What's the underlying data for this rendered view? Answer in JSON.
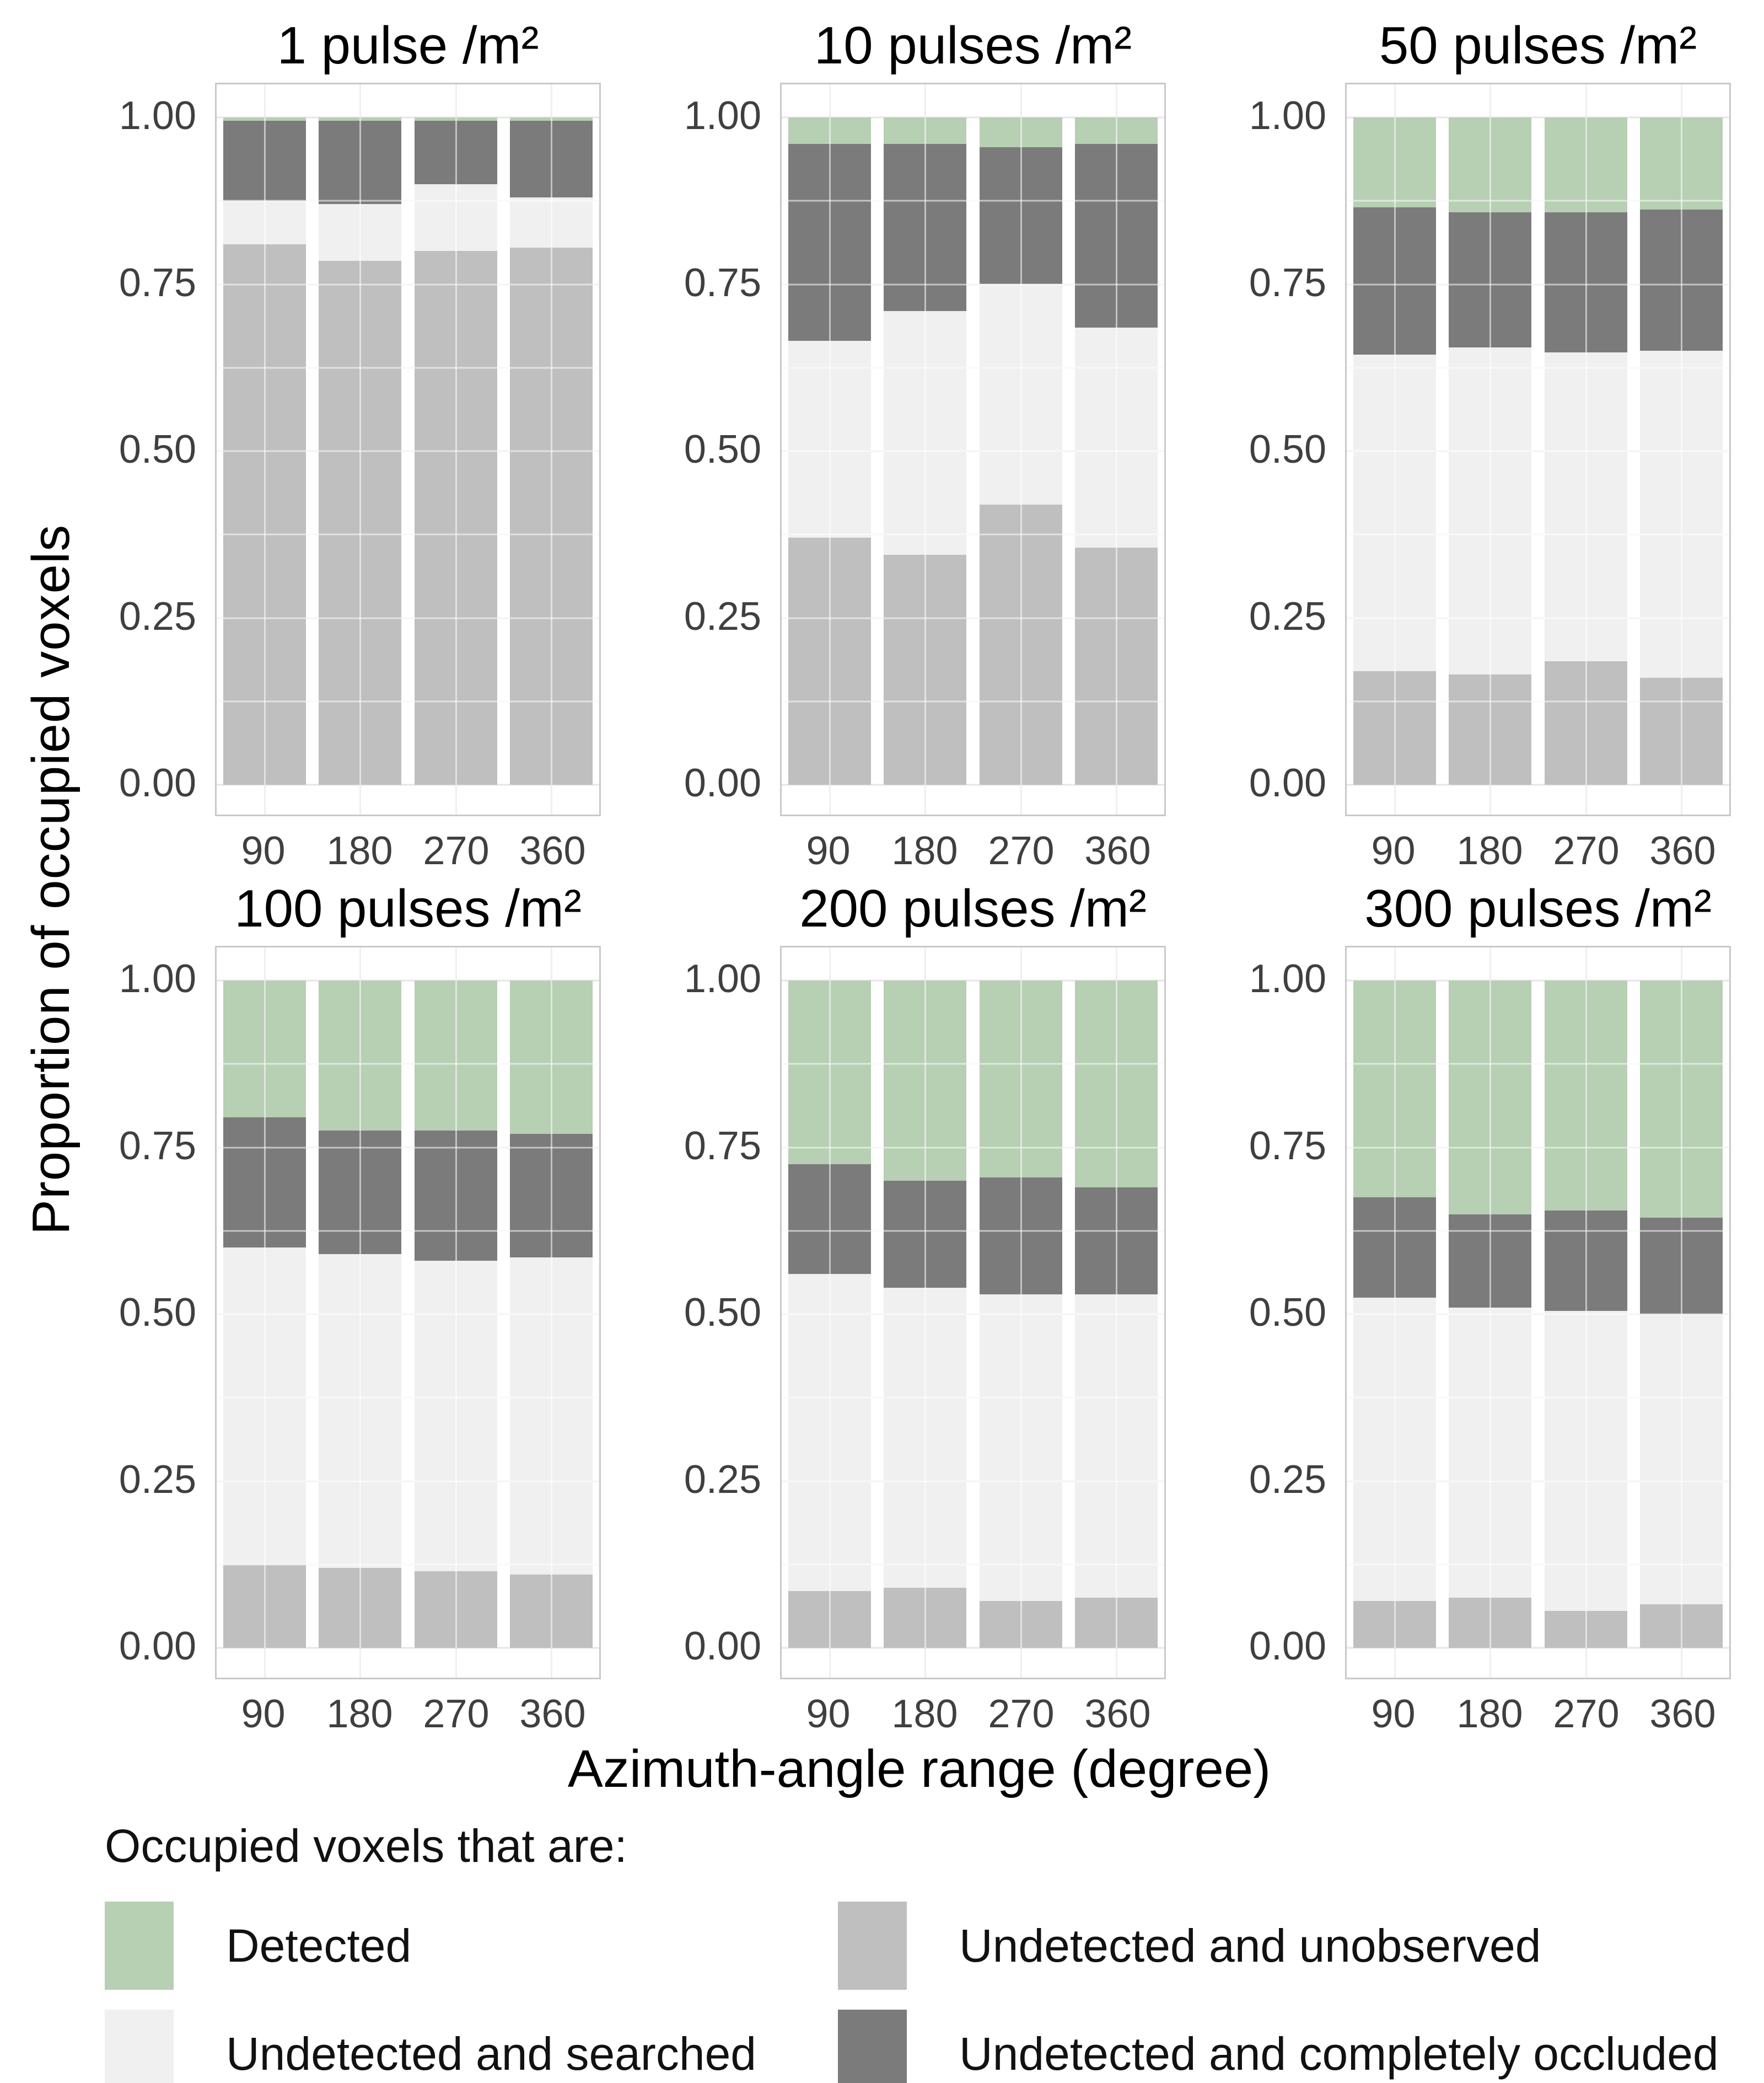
{
  "figure": {
    "x_axis_title": "Azimuth-angle range (degree)",
    "y_axis_title": "Proportion of occupied voxels",
    "legend": {
      "title": "Occupied voxels that are:",
      "items": [
        {
          "label": "Detected",
          "color": "#b7cfb3"
        },
        {
          "label": "Undetected and unobserved",
          "color": "#bfbfbf"
        },
        {
          "label": "Undetected and searched",
          "color": "#f0f0f0"
        },
        {
          "label": "Undetected and completely occluded",
          "color": "#7b7b7b"
        }
      ]
    }
  },
  "chart_data": {
    "type": "bar",
    "stacked": true,
    "grid": true,
    "legend_position": "bottom",
    "categories": [
      "90",
      "180",
      "270",
      "360"
    ],
    "xlabel": "Azimuth-angle range (degree)",
    "ylabel": "Proportion of occupied voxels",
    "ylim": [
      0,
      1
    ],
    "y_ticks": [
      "1.00",
      "0.75",
      "0.50",
      "0.25",
      "0.00"
    ],
    "series": [
      {
        "key": "unobserved",
        "name": "Undetected and unobserved",
        "color": "#bfbfbf"
      },
      {
        "key": "searched",
        "name": "Undetected and searched",
        "color": "#f0f0f0"
      },
      {
        "key": "occluded",
        "name": "Undetected and completely occluded",
        "color": "#7b7b7b"
      },
      {
        "key": "detected",
        "name": "Detected",
        "color": "#b7cfb3"
      }
    ],
    "facets": [
      {
        "title": "1 pulse /m²",
        "values": {
          "unobserved": [
            0.81,
            0.785,
            0.8,
            0.805
          ],
          "searched": [
            0.065,
            0.085,
            0.1,
            0.075
          ],
          "occluded": [
            0.12,
            0.125,
            0.095,
            0.115
          ],
          "detected": [
            0.005,
            0.005,
            0.005,
            0.005
          ]
        }
      },
      {
        "title": "10 pulses /m²",
        "values": {
          "unobserved": [
            0.37,
            0.345,
            0.42,
            0.355
          ],
          "searched": [
            0.295,
            0.365,
            0.33,
            0.33
          ],
          "occluded": [
            0.295,
            0.25,
            0.205,
            0.275
          ],
          "detected": [
            0.04,
            0.04,
            0.045,
            0.04
          ]
        }
      },
      {
        "title": "50 pulses /m²",
        "values": {
          "unobserved": [
            0.17,
            0.165,
            0.185,
            0.16
          ],
          "searched": [
            0.475,
            0.49,
            0.463,
            0.49
          ],
          "occluded": [
            0.22,
            0.203,
            0.21,
            0.212
          ],
          "detected": [
            0.135,
            0.142,
            0.142,
            0.138
          ]
        }
      },
      {
        "title": "100 pulses /m²",
        "values": {
          "unobserved": [
            0.125,
            0.12,
            0.115,
            0.11
          ],
          "searched": [
            0.475,
            0.47,
            0.465,
            0.475
          ],
          "occluded": [
            0.195,
            0.185,
            0.195,
            0.185
          ],
          "detected": [
            0.205,
            0.225,
            0.225,
            0.23
          ]
        }
      },
      {
        "title": "200 pulses /m²",
        "values": {
          "unobserved": [
            0.085,
            0.09,
            0.07,
            0.075
          ],
          "searched": [
            0.475,
            0.45,
            0.46,
            0.455
          ],
          "occluded": [
            0.165,
            0.16,
            0.175,
            0.16
          ],
          "detected": [
            0.275,
            0.3,
            0.295,
            0.31
          ]
        }
      },
      {
        "title": "300 pulses /m²",
        "values": {
          "unobserved": [
            0.07,
            0.075,
            0.055,
            0.065
          ],
          "searched": [
            0.455,
            0.435,
            0.45,
            0.435
          ],
          "occluded": [
            0.15,
            0.14,
            0.15,
            0.145
          ],
          "detected": [
            0.325,
            0.35,
            0.345,
            0.355
          ]
        }
      }
    ]
  }
}
